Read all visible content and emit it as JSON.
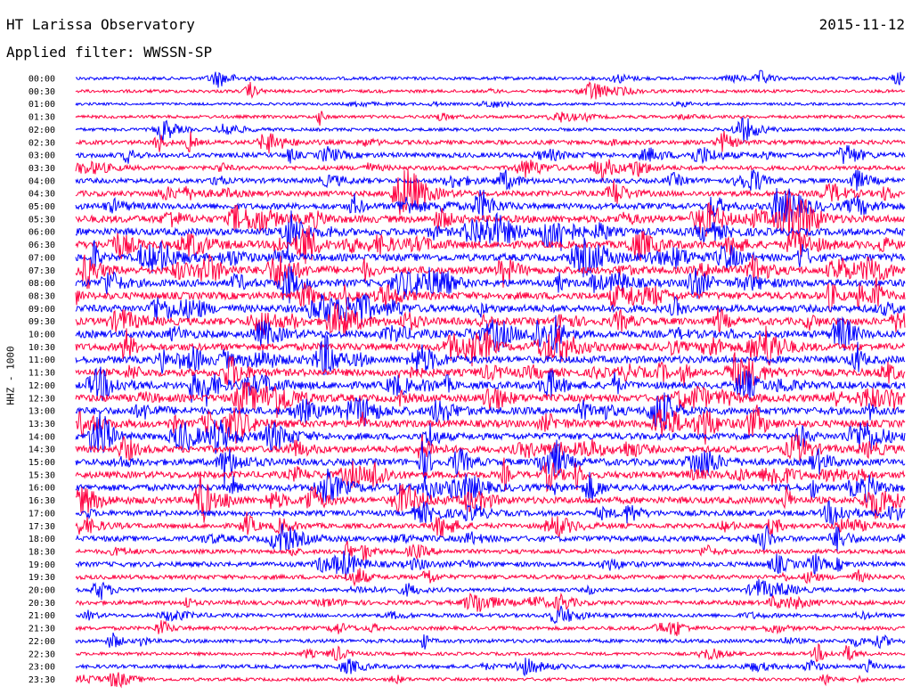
{
  "header": {
    "title": "HT Larissa Observatory",
    "date": "2015-11-12",
    "filter": "Applied filter: WWSSN-SP",
    "channel_label": "HHZ - 1000"
  },
  "chart_data": {
    "type": "line",
    "title": "HT Larissa Observatory",
    "subtitle": "Applied filter: WWSSN-SP",
    "date": "2015-11-12",
    "ylabel": "HHZ - 1000",
    "xlabel": "",
    "trace_colors": [
      "#0000ff",
      "#ff0040"
    ],
    "rows": [
      {
        "time": "00:00",
        "activity": 0.3
      },
      {
        "time": "00:30",
        "activity": 0.3
      },
      {
        "time": "01:00",
        "activity": 0.2
      },
      {
        "time": "01:30",
        "activity": 0.3
      },
      {
        "time": "02:00",
        "activity": 0.3
      },
      {
        "time": "02:30",
        "activity": 0.5
      },
      {
        "time": "03:00",
        "activity": 0.6
      },
      {
        "time": "03:30",
        "activity": 0.5
      },
      {
        "time": "04:00",
        "activity": 0.6
      },
      {
        "time": "04:30",
        "activity": 0.7
      },
      {
        "time": "05:00",
        "activity": 0.8
      },
      {
        "time": "05:30",
        "activity": 1.0
      },
      {
        "time": "06:00",
        "activity": 1.0
      },
      {
        "time": "06:30",
        "activity": 1.0
      },
      {
        "time": "07:00",
        "activity": 1.0
      },
      {
        "time": "07:30",
        "activity": 1.0
      },
      {
        "time": "08:00",
        "activity": 1.0
      },
      {
        "time": "08:30",
        "activity": 1.0
      },
      {
        "time": "09:00",
        "activity": 1.0
      },
      {
        "time": "09:30",
        "activity": 1.0
      },
      {
        "time": "10:00",
        "activity": 1.0
      },
      {
        "time": "10:30",
        "activity": 1.0
      },
      {
        "time": "11:00",
        "activity": 1.0
      },
      {
        "time": "11:30",
        "activity": 1.0
      },
      {
        "time": "12:00",
        "activity": 1.0
      },
      {
        "time": "12:30",
        "activity": 1.0
      },
      {
        "time": "13:00",
        "activity": 1.0
      },
      {
        "time": "13:30",
        "activity": 1.0
      },
      {
        "time": "14:00",
        "activity": 0.9
      },
      {
        "time": "14:30",
        "activity": 0.9
      },
      {
        "time": "15:00",
        "activity": 0.9
      },
      {
        "time": "15:30",
        "activity": 0.9
      },
      {
        "time": "16:00",
        "activity": 0.9
      },
      {
        "time": "16:30",
        "activity": 0.9
      },
      {
        "time": "17:00",
        "activity": 0.7
      },
      {
        "time": "17:30",
        "activity": 0.6
      },
      {
        "time": "18:00",
        "activity": 0.7
      },
      {
        "time": "18:30",
        "activity": 0.5
      },
      {
        "time": "19:00",
        "activity": 0.6
      },
      {
        "time": "19:30",
        "activity": 0.5
      },
      {
        "time": "20:00",
        "activity": 0.4
      },
      {
        "time": "20:30",
        "activity": 0.5
      },
      {
        "time": "21:00",
        "activity": 0.4
      },
      {
        "time": "21:30",
        "activity": 0.4
      },
      {
        "time": "22:00",
        "activity": 0.4
      },
      {
        "time": "22:30",
        "activity": 0.3
      },
      {
        "time": "23:00",
        "activity": 0.4
      },
      {
        "time": "23:30",
        "activity": 0.3
      }
    ]
  }
}
